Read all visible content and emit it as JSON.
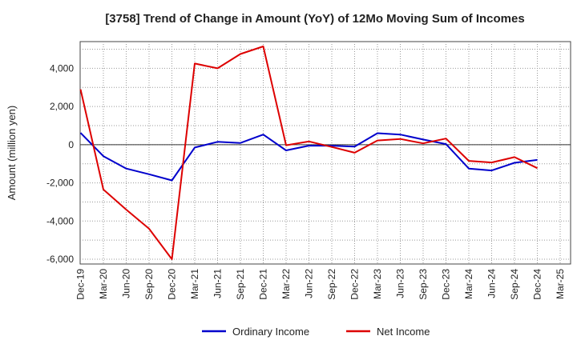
{
  "chart_data": {
    "type": "line",
    "title": "[3758]  Trend of Change in Amount (YoY) of 12Mo Moving Sum of Incomes",
    "xlabel": "",
    "ylabel": "Amount (million yen)",
    "categories": [
      "Dec-19",
      "Mar-20",
      "Jun-20",
      "Sep-20",
      "Dec-20",
      "Mar-21",
      "Jun-21",
      "Sep-21",
      "Dec-21",
      "Mar-22",
      "Jun-22",
      "Sep-22",
      "Dec-22",
      "Mar-23",
      "Jun-23",
      "Sep-23",
      "Dec-23",
      "Mar-24",
      "Jun-24",
      "Sep-24",
      "Dec-24",
      "Mar-25"
    ],
    "yticks": [
      -6000,
      -4000,
      -2000,
      0,
      2000,
      4000
    ],
    "ytick_labels": [
      "-6,000",
      "-4,000",
      "-2,000",
      "0",
      "2,000",
      "4,000"
    ],
    "ylim": [
      -6250,
      5400
    ],
    "grid": true,
    "legend_position": "bottom",
    "series": [
      {
        "name": "Ordinary Income",
        "color": "#0000cc",
        "values": [
          620,
          -600,
          -1250,
          -1550,
          -1870,
          -150,
          150,
          90,
          530,
          -300,
          -50,
          -50,
          -100,
          600,
          530,
          270,
          30,
          -1250,
          -1350,
          -950,
          -800,
          null
        ]
      },
      {
        "name": "Net Income",
        "color": "#dd0000",
        "values": [
          2900,
          -2350,
          -3400,
          -4400,
          -6000,
          4250,
          4000,
          4750,
          5150,
          -30,
          170,
          -120,
          -420,
          220,
          300,
          70,
          320,
          -850,
          -930,
          -650,
          -1230,
          null
        ]
      }
    ]
  }
}
